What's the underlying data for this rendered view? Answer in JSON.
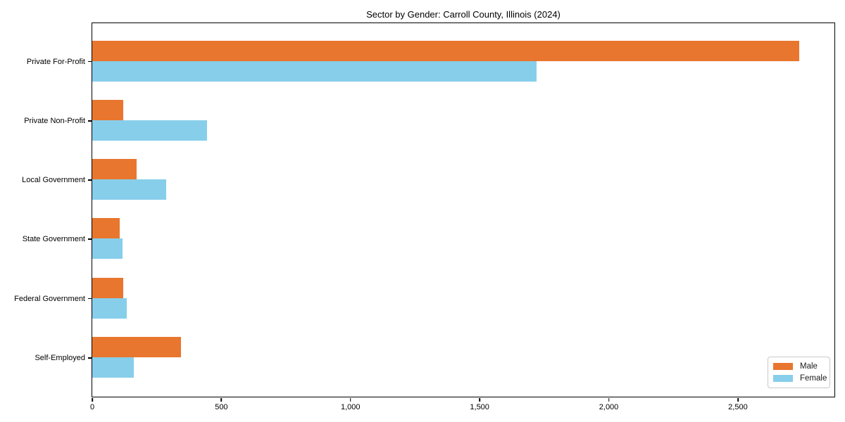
{
  "chart_data": {
    "type": "bar",
    "orientation": "horizontal",
    "title": "Sector by Gender: Carroll County, Illinois (2024)",
    "categories": [
      "Private For-Profit",
      "Private Non-Profit",
      "Local Government",
      "State Government",
      "Federal Government",
      "Self-Employed"
    ],
    "series": [
      {
        "name": "Male",
        "color": "#e8762e",
        "values": [
          2734,
          120,
          171,
          106,
          120,
          343
        ]
      },
      {
        "name": "Female",
        "color": "#87ceeb",
        "values": [
          1718,
          443,
          286,
          117,
          133,
          161
        ]
      }
    ],
    "xlabel": "",
    "ylabel": "",
    "xlim": [
      0,
      2871
    ],
    "xticks": [
      0,
      500,
      1000,
      1500,
      2000,
      2500
    ],
    "xtick_labels": [
      "0",
      "500",
      "1,000",
      "1,500",
      "2,000",
      "2,500"
    ],
    "grid": false,
    "legend_position": "lower right",
    "colors": {
      "male": "#e8762e",
      "female": "#87ceeb",
      "spine": "#000000",
      "background": "#ffffff"
    }
  }
}
